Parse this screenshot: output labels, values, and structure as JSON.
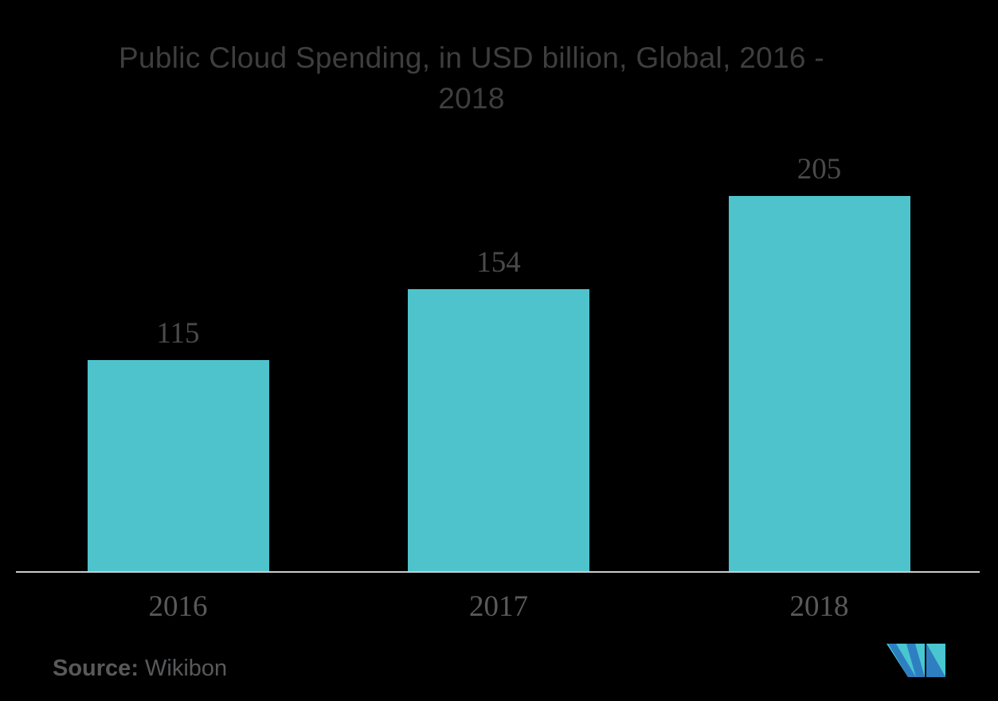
{
  "title": {
    "line1": "Public Cloud Spending, in USD billion, Global, 2016 -",
    "line2": "2018",
    "full": "Public Cloud Spending, in USD billion, Global, 2016 - 2018"
  },
  "chart_data": {
    "type": "bar",
    "title": "Public Cloud Spending, in USD billion, Global, 2016 - 2018",
    "categories": [
      "2016",
      "2017",
      "2018"
    ],
    "values": [
      115,
      154,
      205
    ],
    "value_labels": [
      "115",
      "154",
      "205"
    ],
    "xlabel": "",
    "ylabel": "",
    "ylim": [
      0,
      220
    ],
    "grid": false,
    "legend": false,
    "bar_color": "#4FC3CB"
  },
  "source": {
    "label": "Source:",
    "value": "Wikibon"
  },
  "colors": {
    "background": "#000000",
    "title_text": "#3E3E3E",
    "value_label_text": "#4A4A4A",
    "axis_label_text": "#5A5A5A",
    "axis_line": "#CBCBCB",
    "bar": "#4FC3CB",
    "source_text": "#58595B",
    "logo_blue": "#2E7FC2",
    "logo_teal": "#49C6D0"
  },
  "logo": {
    "name": "mordor-intelligence-logo"
  }
}
